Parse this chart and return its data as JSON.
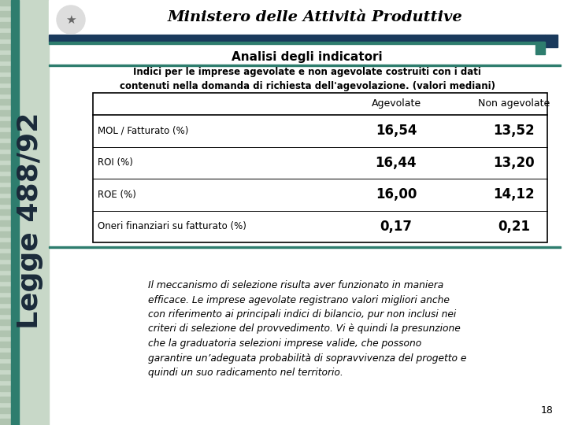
{
  "title_text": "Analisi degli indicatori",
  "header_title": "Ministero delle Attività Produttive",
  "slide_title_side": "Legge 488/92",
  "table_intro": "Indici per le imprese agevolate e non agevolate costruiti con i dati\ncontenuti nella domanda di richiesta dell'agevolazione. (valori mediani)",
  "col_headers": [
    "",
    "Agevolate",
    "Non agevolate"
  ],
  "rows": [
    [
      "MOL / Fatturato (%)",
      "16,54",
      "13,52"
    ],
    [
      "ROI (%)",
      "16,44",
      "13,20"
    ],
    [
      "ROE (%)",
      "16,00",
      "14,12"
    ],
    [
      "Oneri finanziari su fatturato (%)",
      "0,17",
      "0,21"
    ]
  ],
  "body_text": "Il meccanismo di selezione risulta aver funzionato in maniera\nefficace. Le imprese agevolate registrano valori migliori anche\ncon riferimento ai principali indici di bilancio, pur non inclusi nei\ncriteri di selezione del provvedimento. Vi è quindi la presunzione\nche la graduatoria selezioni imprese valide, che possono\ngarantire un’adeguata probabilità di sopravvivenza del progetto e\nquindi un suo radicamento nel territorio.",
  "page_number": "18",
  "bg_color": "#ffffff",
  "header_bar_color": "#1a3a5c",
  "teal_color": "#2e7d6e",
  "side_bg_light": "#c8d8c8",
  "sidebar_stripe_color": "#b0c4b0",
  "table_border_color": "#000000"
}
